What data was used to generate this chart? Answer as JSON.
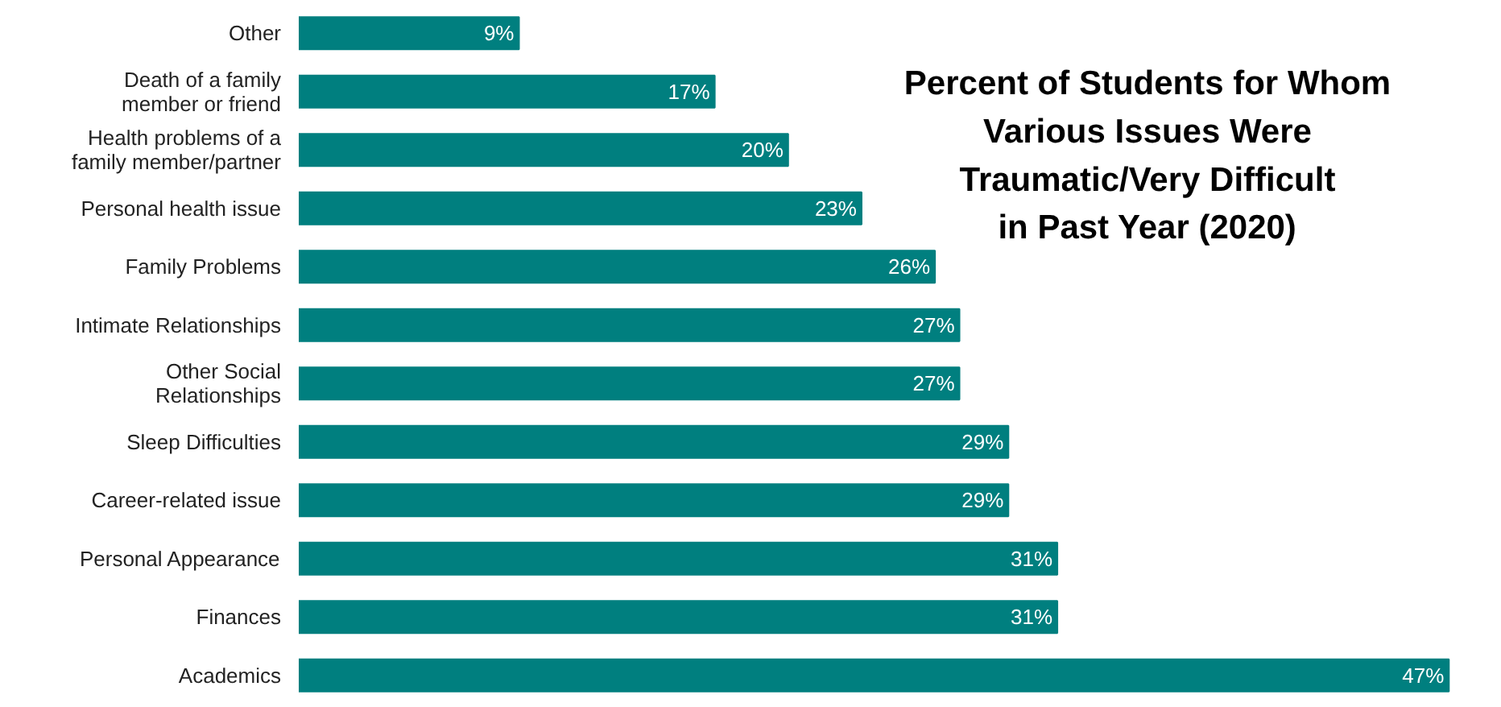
{
  "chart_data": {
    "type": "bar",
    "orientation": "horizontal",
    "title": "Percent of Students for Whom\nVarious Issues Were\nTraumatic/Very Difficult\nin Past Year (2020)",
    "categories": [
      "Other",
      "Death of a family\nmember or friend",
      "Health problems of a\nfamily member/partner",
      "Personal health issue",
      "Family Problems",
      "Intimate Relationships",
      "Other Social\nRelationships",
      "Sleep Difficulties",
      "Career-related issue",
      "Personal Appearance",
      "Finances",
      "Academics"
    ],
    "values": [
      9,
      17,
      20,
      23,
      26,
      27,
      27,
      29,
      29,
      31,
      31,
      47
    ],
    "value_labels": [
      "9%",
      "17%",
      "20%",
      "23%",
      "26%",
      "27%",
      "27%",
      "29%",
      "29%",
      "31%",
      "31%",
      "47%"
    ],
    "color": "#007f7f",
    "tick_labels": "y"
  }
}
